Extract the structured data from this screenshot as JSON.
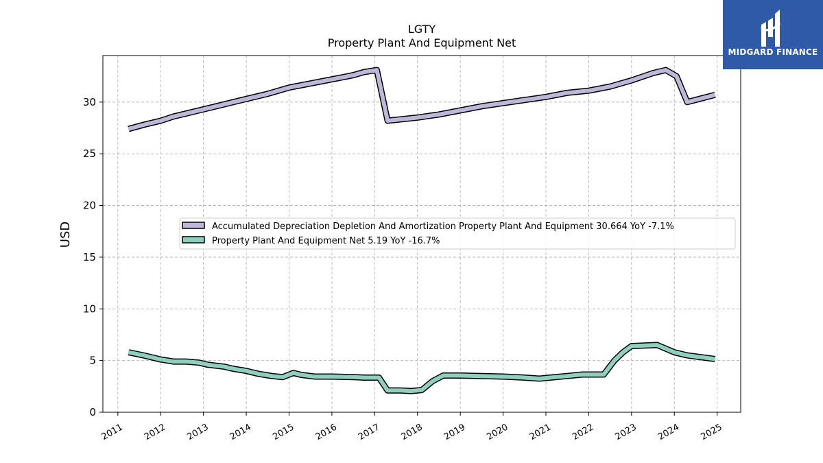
{
  "brand": {
    "name": "MIDGARD FINANCE",
    "logo_icon": "midgard-mark-icon",
    "bg_color": "#2f5aa8"
  },
  "chart_data": {
    "type": "line",
    "title": "LGTY",
    "subtitle": "Property Plant And Equipment Net",
    "xlabel": "",
    "ylabel": "USD",
    "ylim": [
      0,
      34.5
    ],
    "xlim": [
      2010.65,
      2025.55
    ],
    "yticks": [
      0,
      5,
      10,
      15,
      20,
      25,
      30
    ],
    "xticks": [
      "2011",
      "2012",
      "2013",
      "2014",
      "2015",
      "2016",
      "2017",
      "2018",
      "2019",
      "2020",
      "2021",
      "2022",
      "2023",
      "2024",
      "2025"
    ],
    "grid": true,
    "legend_position": "center-right",
    "series": [
      {
        "name": "Accumulated Depreciation Depletion And Amortization Property Plant And Equipment",
        "legend": "Accumulated Depreciation Depletion And Amortization Property Plant And Equipment  30.664 YoY -7.1%",
        "color": "#bcb8d9",
        "points": [
          [
            2011.25,
            27.4
          ],
          [
            2011.6,
            27.8
          ],
          [
            2012.0,
            28.2
          ],
          [
            2012.3,
            28.6
          ],
          [
            2012.6,
            28.9
          ],
          [
            2013.0,
            29.3
          ],
          [
            2013.3,
            29.6
          ],
          [
            2013.7,
            30.0
          ],
          [
            2014.0,
            30.3
          ],
          [
            2014.5,
            30.8
          ],
          [
            2015.0,
            31.4
          ],
          [
            2015.5,
            31.8
          ],
          [
            2016.0,
            32.2
          ],
          [
            2016.5,
            32.6
          ],
          [
            2016.75,
            32.9
          ],
          [
            2017.05,
            33.1
          ],
          [
            2017.3,
            28.2
          ],
          [
            2018.0,
            28.5
          ],
          [
            2018.5,
            28.8
          ],
          [
            2019.0,
            29.2
          ],
          [
            2019.5,
            29.6
          ],
          [
            2020.0,
            29.9
          ],
          [
            2020.5,
            30.2
          ],
          [
            2021.0,
            30.5
          ],
          [
            2021.5,
            30.9
          ],
          [
            2022.0,
            31.1
          ],
          [
            2022.5,
            31.5
          ],
          [
            2023.0,
            32.1
          ],
          [
            2023.5,
            32.8
          ],
          [
            2023.8,
            33.1
          ],
          [
            2024.05,
            32.5
          ],
          [
            2024.3,
            30.0
          ],
          [
            2024.95,
            30.7
          ]
        ]
      },
      {
        "name": "Property Plant And Equipment Net",
        "legend": "Property Plant And Equipment Net  5.19 YoY -16.7%",
        "color": "#8ecfc0",
        "points": [
          [
            2011.25,
            5.8
          ],
          [
            2011.6,
            5.5
          ],
          [
            2012.0,
            5.1
          ],
          [
            2012.3,
            4.9
          ],
          [
            2012.6,
            4.9
          ],
          [
            2012.9,
            4.8
          ],
          [
            2013.1,
            4.6
          ],
          [
            2013.5,
            4.4
          ],
          [
            2013.7,
            4.2
          ],
          [
            2014.0,
            4.0
          ],
          [
            2014.3,
            3.7
          ],
          [
            2014.6,
            3.5
          ],
          [
            2014.85,
            3.4
          ],
          [
            2015.1,
            3.8
          ],
          [
            2015.3,
            3.6
          ],
          [
            2015.6,
            3.45
          ],
          [
            2016.0,
            3.45
          ],
          [
            2016.5,
            3.4
          ],
          [
            2016.75,
            3.35
          ],
          [
            2017.1,
            3.35
          ],
          [
            2017.3,
            2.1
          ],
          [
            2017.6,
            2.1
          ],
          [
            2017.85,
            2.05
          ],
          [
            2018.1,
            2.15
          ],
          [
            2018.35,
            3.0
          ],
          [
            2018.6,
            3.55
          ],
          [
            2019.0,
            3.55
          ],
          [
            2019.5,
            3.5
          ],
          [
            2020.0,
            3.45
          ],
          [
            2020.5,
            3.35
          ],
          [
            2020.85,
            3.25
          ],
          [
            2021.1,
            3.35
          ],
          [
            2021.5,
            3.5
          ],
          [
            2021.85,
            3.65
          ],
          [
            2022.1,
            3.65
          ],
          [
            2022.35,
            3.65
          ],
          [
            2022.6,
            5.0
          ],
          [
            2022.8,
            5.8
          ],
          [
            2023.0,
            6.4
          ],
          [
            2023.3,
            6.45
          ],
          [
            2023.6,
            6.5
          ],
          [
            2024.0,
            5.8
          ],
          [
            2024.3,
            5.5
          ],
          [
            2024.95,
            5.15
          ]
        ]
      }
    ]
  }
}
